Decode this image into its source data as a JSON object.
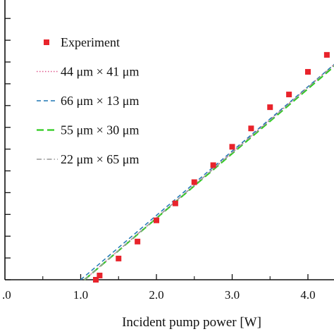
{
  "chart_data": {
    "type": "scatter",
    "xlabel": "Incident pump power [W]",
    "ylabel": "",
    "title": "",
    "xlim": [
      1.0,
      4.35
    ],
    "ylim": [
      0,
      1
    ],
    "x_ticks": [
      {
        "value": 1.0,
        "label": "1.0"
      },
      {
        "value": 2.0,
        "label": "2.0"
      },
      {
        "value": 3.0,
        "label": "3.0"
      },
      {
        "value": 4.0,
        "label": "4.0"
      }
    ],
    "x_tick_labels_partial": [
      {
        "value": 0.0,
        "label": ".0"
      }
    ],
    "y_tick_count": 14,
    "grid": false,
    "legend_position": "top-left",
    "series": [
      {
        "name": "Experiment",
        "kind": "marker",
        "color": "#e8232b",
        "x": [
          1.2,
          1.25,
          1.5,
          1.75,
          2.0,
          2.25,
          2.5,
          2.75,
          3.0,
          3.25,
          3.5,
          3.75,
          4.0,
          4.25
        ],
        "y": [
          0.0,
          0.015,
          0.075,
          0.135,
          0.21,
          0.27,
          0.345,
          0.405,
          0.47,
          0.535,
          0.61,
          0.655,
          0.735,
          0.795
        ]
      },
      {
        "name": "44 μm × 41 μm",
        "kind": "line",
        "dash": "1.5,2.5",
        "color": "#e0588e",
        "x": [
          1.05,
          4.35
        ],
        "y": [
          0.0,
          0.762
        ]
      },
      {
        "name": "66 μm × 13 μm",
        "kind": "line",
        "dash": "6,4",
        "color": "#1f77b4",
        "x": [
          1.0,
          4.35
        ],
        "y": [
          0.0,
          0.762
        ]
      },
      {
        "name": "55 μm × 30 μm",
        "kind": "line",
        "dash": "10,5",
        "color": "#2ecc1f",
        "x": [
          1.05,
          4.35
        ],
        "y": [
          0.0,
          0.755
        ]
      },
      {
        "name": "22 μm × 65 μm",
        "kind": "line",
        "dash": "7,3,1.5,3",
        "color": "#999999",
        "x": [
          1.05,
          4.35
        ],
        "y": [
          0.0,
          0.76
        ]
      }
    ]
  }
}
